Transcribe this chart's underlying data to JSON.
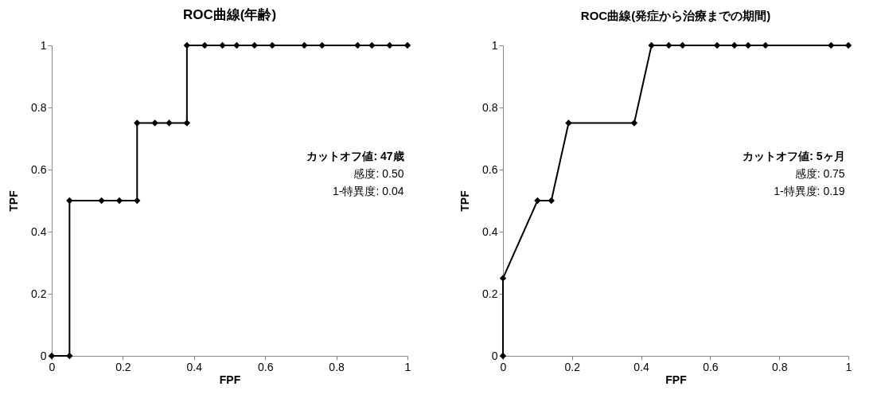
{
  "chart_data": [
    {
      "type": "line",
      "title": "ROC曲線(年齢)",
      "xlabel": "FPF",
      "ylabel": "TPF",
      "x": [
        0,
        0.05,
        0.05,
        0.14,
        0.19,
        0.24,
        0.24,
        0.29,
        0.33,
        0.38,
        0.38,
        0.43,
        0.48,
        0.52,
        0.57,
        0.62,
        0.71,
        0.76,
        0.86,
        0.9,
        0.95,
        1
      ],
      "series": [
        {
          "color": "#000000",
          "values": [
            0,
            0,
            0.5,
            0.5,
            0.5,
            0.5,
            0.75,
            0.75,
            0.75,
            0.75,
            1,
            1,
            1,
            1,
            1,
            1,
            1,
            1,
            1,
            1,
            1,
            1
          ]
        }
      ],
      "xlim": [
        0,
        1
      ],
      "ylim": [
        0,
        1
      ],
      "xticks": [
        0,
        0.2,
        0.4,
        0.6,
        0.8,
        1
      ],
      "yticks": [
        0,
        0.2,
        0.4,
        0.6,
        0.8,
        1
      ],
      "grid": false,
      "marker": "diamond",
      "line_style": "solid",
      "annotations": [
        "カットオフ値: 47歳",
        "感度: 0.50",
        "1-特異度: 0.04"
      ]
    },
    {
      "type": "line",
      "title": "ROC曲線(発症から治療までの期間)",
      "xlabel": "FPF",
      "ylabel": "TPF",
      "x": [
        0,
        0,
        0.1,
        0.14,
        0.19,
        0.38,
        0.43,
        0.48,
        0.52,
        0.62,
        0.67,
        0.71,
        0.76,
        0.95,
        1
      ],
      "series": [
        {
          "color": "#000000",
          "values": [
            0,
            0.25,
            0.5,
            0.5,
            0.75,
            0.75,
            1,
            1,
            1,
            1,
            1,
            1,
            1,
            1,
            1
          ]
        }
      ],
      "xlim": [
        0,
        1
      ],
      "ylim": [
        0,
        1
      ],
      "xticks": [
        0,
        0.2,
        0.4,
        0.6,
        0.8,
        1
      ],
      "yticks": [
        0,
        0.2,
        0.4,
        0.6,
        0.8,
        1
      ],
      "grid": false,
      "marker": "diamond",
      "line_style": "solid",
      "annotations": [
        "カットオフ値: 5ヶ月",
        "感度: 0.75",
        "1-特異度: 0.19"
      ]
    }
  ]
}
